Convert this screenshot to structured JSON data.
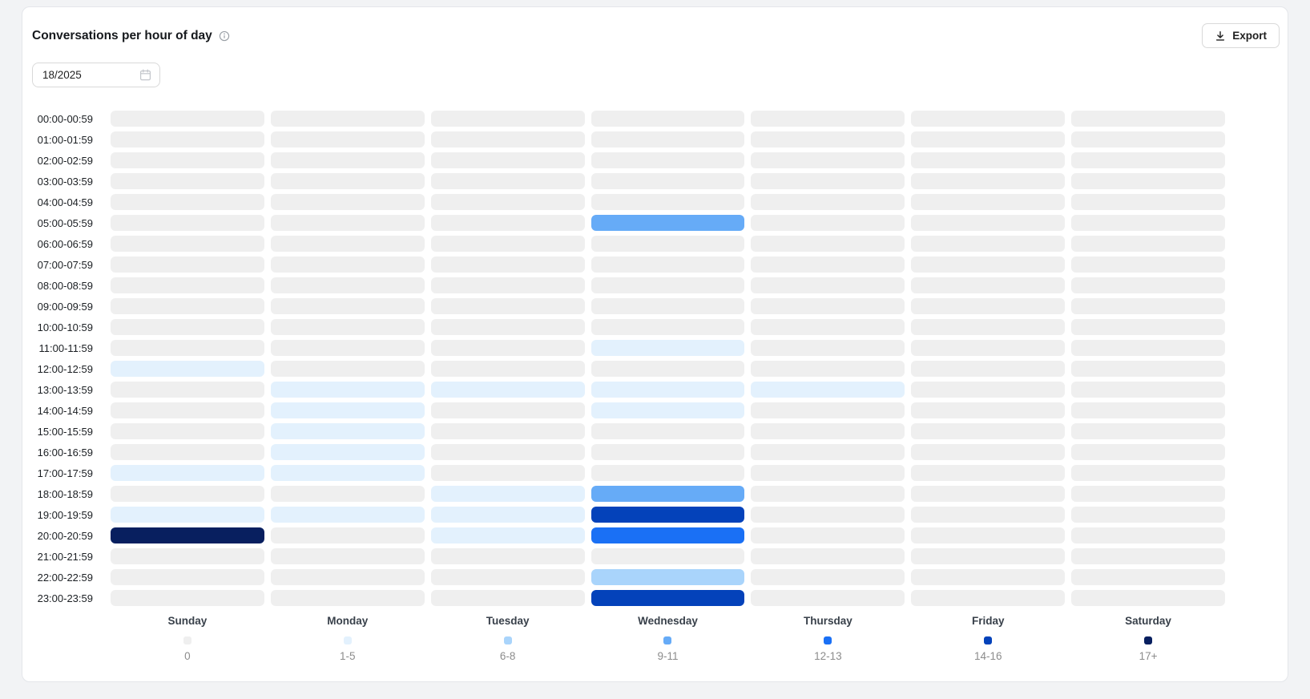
{
  "header": {
    "title": "Conversations per hour of day",
    "export_label": "Export"
  },
  "week_picker": {
    "value": "18/2025"
  },
  "chart_data": {
    "type": "heatmap",
    "title": "Conversations per hour of day",
    "x_categories": [
      "Sunday",
      "Monday",
      "Tuesday",
      "Wednesday",
      "Thursday",
      "Friday",
      "Saturday"
    ],
    "y_categories": [
      "00:00-00:59",
      "01:00-01:59",
      "02:00-02:59",
      "03:00-03:59",
      "04:00-04:59",
      "05:00-05:59",
      "06:00-06:59",
      "07:00-07:59",
      "08:00-08:59",
      "09:00-09:59",
      "10:00-10:59",
      "11:00-11:59",
      "12:00-12:59",
      "13:00-13:59",
      "14:00-14:59",
      "15:00-15:59",
      "16:00-16:59",
      "17:00-17:59",
      "18:00-18:59",
      "19:00-19:59",
      "20:00-20:59",
      "21:00-21:59",
      "22:00-22:59",
      "23:00-23:59"
    ],
    "legend_position": "bottom",
    "buckets": [
      {
        "label": "0",
        "color": "#efefef"
      },
      {
        "label": "1-5",
        "color": "#e3f1fd"
      },
      {
        "label": "6-8",
        "color": "#a9d4fb"
      },
      {
        "label": "9-11",
        "color": "#66abf7"
      },
      {
        "label": "12-13",
        "color": "#1a70f5"
      },
      {
        "label": "14-16",
        "color": "#0442ba"
      },
      {
        "label": "17+",
        "color": "#081f5f"
      }
    ],
    "cell_value_meaning": "index into buckets, rows ordered by y_categories, columns by x_categories",
    "cells": [
      [
        0,
        0,
        0,
        0,
        0,
        0,
        0
      ],
      [
        0,
        0,
        0,
        0,
        0,
        0,
        0
      ],
      [
        0,
        0,
        0,
        0,
        0,
        0,
        0
      ],
      [
        0,
        0,
        0,
        0,
        0,
        0,
        0
      ],
      [
        0,
        0,
        0,
        0,
        0,
        0,
        0
      ],
      [
        0,
        0,
        0,
        3,
        0,
        0,
        0
      ],
      [
        0,
        0,
        0,
        0,
        0,
        0,
        0
      ],
      [
        0,
        0,
        0,
        0,
        0,
        0,
        0
      ],
      [
        0,
        0,
        0,
        0,
        0,
        0,
        0
      ],
      [
        0,
        0,
        0,
        0,
        0,
        0,
        0
      ],
      [
        0,
        0,
        0,
        0,
        0,
        0,
        0
      ],
      [
        0,
        0,
        0,
        1,
        0,
        0,
        0
      ],
      [
        1,
        0,
        0,
        0,
        0,
        0,
        0
      ],
      [
        0,
        1,
        1,
        1,
        1,
        0,
        0
      ],
      [
        0,
        1,
        0,
        1,
        0,
        0,
        0
      ],
      [
        0,
        1,
        0,
        0,
        0,
        0,
        0
      ],
      [
        0,
        1,
        0,
        0,
        0,
        0,
        0
      ],
      [
        1,
        1,
        0,
        0,
        0,
        0,
        0
      ],
      [
        0,
        0,
        1,
        3,
        0,
        0,
        0
      ],
      [
        1,
        1,
        1,
        5,
        0,
        0,
        0
      ],
      [
        6,
        0,
        1,
        4,
        0,
        0,
        0
      ],
      [
        0,
        0,
        0,
        0,
        0,
        0,
        0
      ],
      [
        0,
        0,
        0,
        2,
        0,
        0,
        0
      ],
      [
        0,
        0,
        0,
        5,
        0,
        0,
        0
      ]
    ]
  }
}
